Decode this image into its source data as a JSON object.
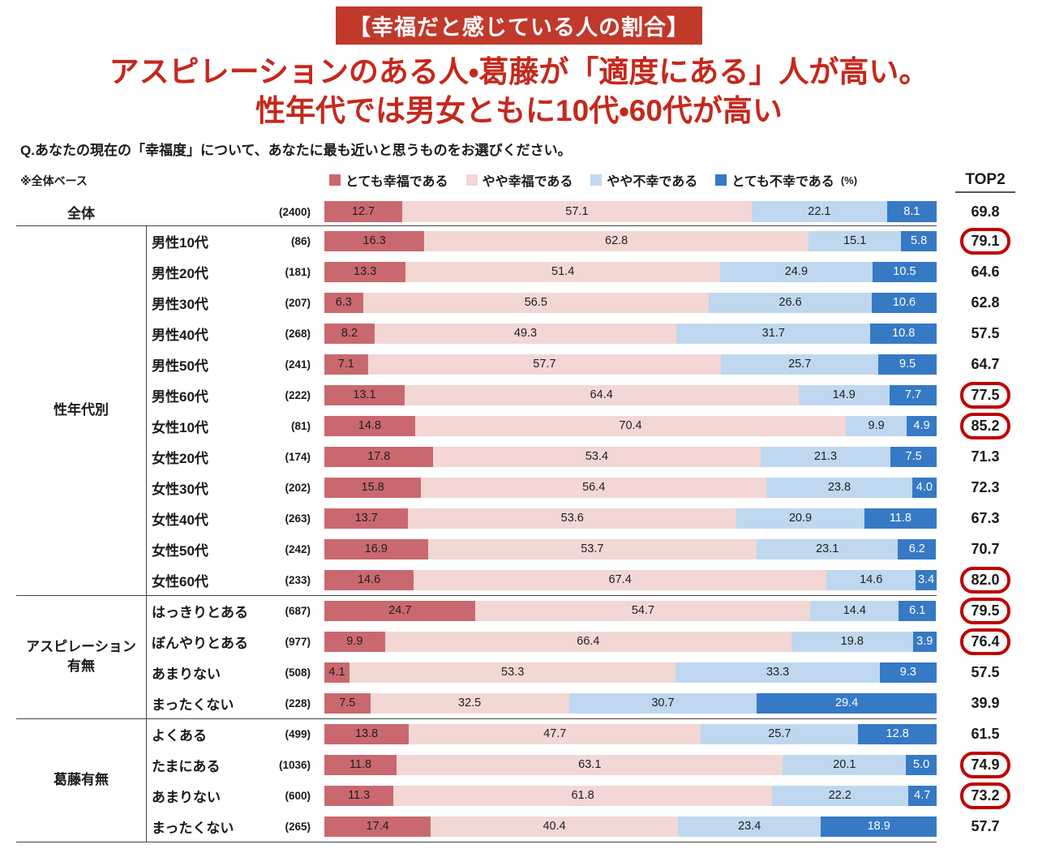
{
  "banner": {
    "text": "【幸福だと感じている人の割合】"
  },
  "title": {
    "line1": "アスピレーションのある人・葛藤が「適度にある」人が高い。",
    "line2": "性年代では男女ともに10代・60代が高い"
  },
  "question": "Q.あなたの現在の「幸福度」について、あなたに最も近いと思うものをお選びください。",
  "base_note": "※全体ベース",
  "top2_header": "TOP2",
  "colors": {
    "banner_bg": "#c0392b",
    "title_text": "#c5281c",
    "highlight_ring": "#c00000",
    "divider": "#444444"
  },
  "legend": {
    "unit": "(%)",
    "items": [
      {
        "name": "very-happy",
        "label": "とても幸福である",
        "color": "#c9696f",
        "value_color": "#1f1f1f"
      },
      {
        "name": "somewhat-happy",
        "label": "やや幸福である",
        "color": "#f2d7d4",
        "value_color": "#1f1f1f"
      },
      {
        "name": "somewhat-unhappy",
        "label": "やや不幸である",
        "color": "#bfd8ef",
        "value_color": "#1f1f1f"
      },
      {
        "name": "very-unhappy",
        "label": "とても不幸である",
        "color": "#3679c5",
        "value_color": "#ffffff"
      }
    ]
  },
  "groups": [
    {
      "id": "性年代別",
      "display": "性年代別"
    },
    {
      "id": "アスピレーション有無",
      "display": "アスピレーション\n有無"
    },
    {
      "id": "葛藤有無",
      "display": "葛藤有無"
    }
  ],
  "chart_data": {
    "type": "bar",
    "variant": "horizontal-stacked",
    "unit": "%",
    "xlim": [
      0,
      100
    ],
    "series_names": [
      "とても幸福である",
      "やや幸福である",
      "やや不幸である",
      "とても不幸である"
    ],
    "rows": [
      {
        "group": "",
        "label": "全体",
        "n": 2400,
        "values": [
          12.7,
          57.1,
          22.1,
          8.1
        ],
        "top2": 69.8,
        "highlighted": false
      },
      {
        "group": "性年代別",
        "label": "男性10代",
        "n": 86,
        "values": [
          16.3,
          62.8,
          15.1,
          5.8
        ],
        "top2": 79.1,
        "highlighted": true
      },
      {
        "group": "性年代別",
        "label": "男性20代",
        "n": 181,
        "values": [
          13.3,
          51.4,
          24.9,
          10.5
        ],
        "top2": 64.6,
        "highlighted": false
      },
      {
        "group": "性年代別",
        "label": "男性30代",
        "n": 207,
        "values": [
          6.3,
          56.5,
          26.6,
          10.6
        ],
        "top2": 62.8,
        "highlighted": false
      },
      {
        "group": "性年代別",
        "label": "男性40代",
        "n": 268,
        "values": [
          8.2,
          49.3,
          31.7,
          10.8
        ],
        "top2": 57.5,
        "highlighted": false
      },
      {
        "group": "性年代別",
        "label": "男性50代",
        "n": 241,
        "values": [
          7.1,
          57.7,
          25.7,
          9.5
        ],
        "top2": 64.7,
        "highlighted": false
      },
      {
        "group": "性年代別",
        "label": "男性60代",
        "n": 222,
        "values": [
          13.1,
          64.4,
          14.9,
          7.7
        ],
        "top2": 77.5,
        "highlighted": true
      },
      {
        "group": "性年代別",
        "label": "女性10代",
        "n": 81,
        "values": [
          14.8,
          70.4,
          9.9,
          4.9
        ],
        "top2": 85.2,
        "highlighted": true
      },
      {
        "group": "性年代別",
        "label": "女性20代",
        "n": 174,
        "values": [
          17.8,
          53.4,
          21.3,
          7.5
        ],
        "top2": 71.3,
        "highlighted": false
      },
      {
        "group": "性年代別",
        "label": "女性30代",
        "n": 202,
        "values": [
          15.8,
          56.4,
          23.8,
          4.0
        ],
        "top2": 72.3,
        "highlighted": false
      },
      {
        "group": "性年代別",
        "label": "女性40代",
        "n": 263,
        "values": [
          13.7,
          53.6,
          20.9,
          11.8
        ],
        "top2": 67.3,
        "highlighted": false
      },
      {
        "group": "性年代別",
        "label": "女性50代",
        "n": 242,
        "values": [
          16.9,
          53.7,
          23.1,
          6.2
        ],
        "top2": 70.7,
        "highlighted": false
      },
      {
        "group": "性年代別",
        "label": "女性60代",
        "n": 233,
        "values": [
          14.6,
          67.4,
          14.6,
          3.4
        ],
        "top2": 82.0,
        "highlighted": true
      },
      {
        "group": "アスピレーション有無",
        "label": "はっきりとある",
        "n": 687,
        "values": [
          24.7,
          54.7,
          14.4,
          6.1
        ],
        "top2": 79.5,
        "highlighted": true
      },
      {
        "group": "アスピレーション有無",
        "label": "ぼんやりとある",
        "n": 977,
        "values": [
          9.9,
          66.4,
          19.8,
          3.9
        ],
        "top2": 76.4,
        "highlighted": true
      },
      {
        "group": "アスピレーション有無",
        "label": "あまりない",
        "n": 508,
        "values": [
          4.1,
          53.3,
          33.3,
          9.3
        ],
        "top2": 57.5,
        "highlighted": false
      },
      {
        "group": "アスピレーション有無",
        "label": "まったくない",
        "n": 228,
        "values": [
          7.5,
          32.5,
          30.7,
          29.4
        ],
        "top2": 39.9,
        "highlighted": false
      },
      {
        "group": "葛藤有無",
        "label": "よくある",
        "n": 499,
        "values": [
          13.8,
          47.7,
          25.7,
          12.8
        ],
        "top2": 61.5,
        "highlighted": false
      },
      {
        "group": "葛藤有無",
        "label": "たまにある",
        "n": 1036,
        "values": [
          11.8,
          63.1,
          20.1,
          5.0
        ],
        "top2": 74.9,
        "highlighted": true
      },
      {
        "group": "葛藤有無",
        "label": "あまりない",
        "n": 600,
        "values": [
          11.3,
          61.8,
          22.2,
          4.7
        ],
        "top2": 73.2,
        "highlighted": true
      },
      {
        "group": "葛藤有無",
        "label": "まったくない",
        "n": 265,
        "values": [
          17.4,
          40.4,
          23.4,
          18.9
        ],
        "top2": 57.7,
        "highlighted": false
      }
    ]
  }
}
